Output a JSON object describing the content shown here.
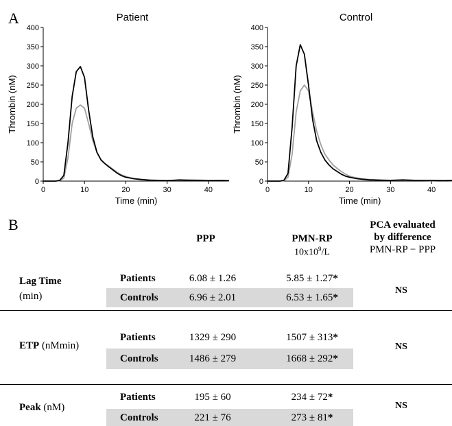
{
  "panels": {
    "a": "A",
    "b": "B"
  },
  "chart_data": [
    {
      "type": "line",
      "title": "Patient",
      "xlabel": "Time (min)",
      "ylabel": "Thrombin (nM)",
      "xlim": [
        0,
        45
      ],
      "ylim": [
        0,
        400
      ],
      "xticks": [
        "0",
        "10",
        "20",
        "30",
        "40"
      ],
      "yticks": [
        "0",
        "50",
        "100",
        "150",
        "200",
        "250",
        "300",
        "350",
        "400"
      ],
      "grid": false,
      "colors": [
        "#000000",
        "#a0a0a0"
      ],
      "series": [
        {
          "x": [
            0,
            3,
            4,
            5,
            6,
            7,
            8,
            9,
            10,
            11,
            12,
            13,
            14,
            15,
            16,
            17,
            18,
            19,
            20,
            21,
            22,
            23,
            24,
            25,
            26,
            28,
            30,
            33,
            36,
            40,
            43,
            45
          ],
          "y": [
            0,
            0,
            2,
            15,
            100,
            220,
            285,
            298,
            270,
            185,
            115,
            75,
            55,
            45,
            36,
            28,
            20,
            14,
            10,
            8,
            6,
            5,
            4,
            3,
            2,
            2,
            1,
            3,
            2,
            1,
            2,
            1
          ]
        },
        {
          "x": [
            0,
            3,
            4,
            5,
            6,
            7,
            8,
            9,
            10,
            11,
            12,
            13,
            14,
            15,
            16,
            17,
            18,
            19,
            20,
            21,
            22,
            23,
            24,
            25,
            26,
            28,
            30,
            33,
            36,
            40,
            43,
            45
          ],
          "y": [
            0,
            0,
            1,
            8,
            60,
            150,
            190,
            198,
            190,
            150,
            105,
            75,
            55,
            45,
            38,
            30,
            22,
            16,
            12,
            9,
            7,
            5,
            4,
            3,
            3,
            2,
            2,
            2,
            3,
            2,
            2,
            1
          ]
        }
      ]
    },
    {
      "type": "line",
      "title": "Control",
      "xlabel": "Time (min)",
      "ylabel": "Thrombin (nM)",
      "xlim": [
        0,
        45
      ],
      "ylim": [
        0,
        400
      ],
      "xticks": [
        "0",
        "10",
        "20",
        "30",
        "40"
      ],
      "yticks": [
        "0",
        "50",
        "100",
        "150",
        "200",
        "250",
        "300",
        "350",
        "400"
      ],
      "grid": false,
      "colors": [
        "#000000",
        "#a0a0a0"
      ],
      "series": [
        {
          "x": [
            0,
            3,
            4,
            5,
            6,
            7,
            8,
            9,
            10,
            11,
            12,
            13,
            14,
            15,
            16,
            17,
            18,
            19,
            20,
            21,
            22,
            23,
            24,
            25,
            26,
            28,
            30,
            33,
            36,
            40,
            43,
            45
          ],
          "y": [
            0,
            0,
            2,
            20,
            140,
            300,
            355,
            330,
            250,
            160,
            105,
            75,
            55,
            42,
            32,
            25,
            18,
            13,
            10,
            8,
            6,
            5,
            4,
            3,
            3,
            2,
            2,
            3,
            2,
            2,
            1,
            2
          ]
        },
        {
          "x": [
            0,
            3,
            4,
            5,
            6,
            7,
            8,
            9,
            10,
            11,
            12,
            13,
            14,
            15,
            16,
            17,
            18,
            19,
            20,
            21,
            22,
            23,
            24,
            25,
            26,
            28,
            30,
            33,
            36,
            40,
            43,
            45
          ],
          "y": [
            0,
            0,
            1,
            10,
            70,
            180,
            235,
            250,
            235,
            180,
            130,
            95,
            70,
            55,
            42,
            33,
            25,
            18,
            13,
            10,
            8,
            6,
            5,
            4,
            3,
            3,
            2,
            2,
            2,
            1,
            2,
            1
          ]
        }
      ]
    },
    {
      "type": "table",
      "columns": {
        "ppp": "PPP",
        "pmn_title": "PMN-RP",
        "pmn_unit_pre": "10x10",
        "pmn_unit_sup": "9",
        "pmn_unit_post": "/L",
        "pca_line1": "PCA evaluated",
        "pca_line2": "by difference",
        "pca_line3": "PMN-RP − PPP"
      },
      "rows": [
        {
          "label": "Lag Time",
          "unit": "(min)",
          "groups": [
            {
              "name": "Patients",
              "ppp": "6.08 ± 1.26",
              "pmn": "5.85 ± 1.27",
              "star": "*"
            },
            {
              "name": "Controls",
              "ppp": "6.96 ± 2.01",
              "pmn": "6.53 ± 1.65",
              "star": "*"
            }
          ],
          "pca": "NS"
        },
        {
          "label": "ETP",
          "unit": "(nMmin)",
          "groups": [
            {
              "name": "Patients",
              "ppp": "1329 ± 290",
              "pmn": "1507 ± 313",
              "star": "*"
            },
            {
              "name": "Controls",
              "ppp": "1486 ± 279",
              "pmn": "1668 ± 292",
              "star": "*"
            }
          ],
          "pca": "NS"
        },
        {
          "label": "Peak",
          "unit": "(nM)",
          "groups": [
            {
              "name": "Patients",
              "ppp": "195 ± 60",
              "pmn": "234 ± 72",
              "star": "*"
            },
            {
              "name": "Controls",
              "ppp": "221 ± 76",
              "pmn": "273 ± 81",
              "star": "*"
            }
          ],
          "pca": "NS"
        }
      ]
    }
  ]
}
